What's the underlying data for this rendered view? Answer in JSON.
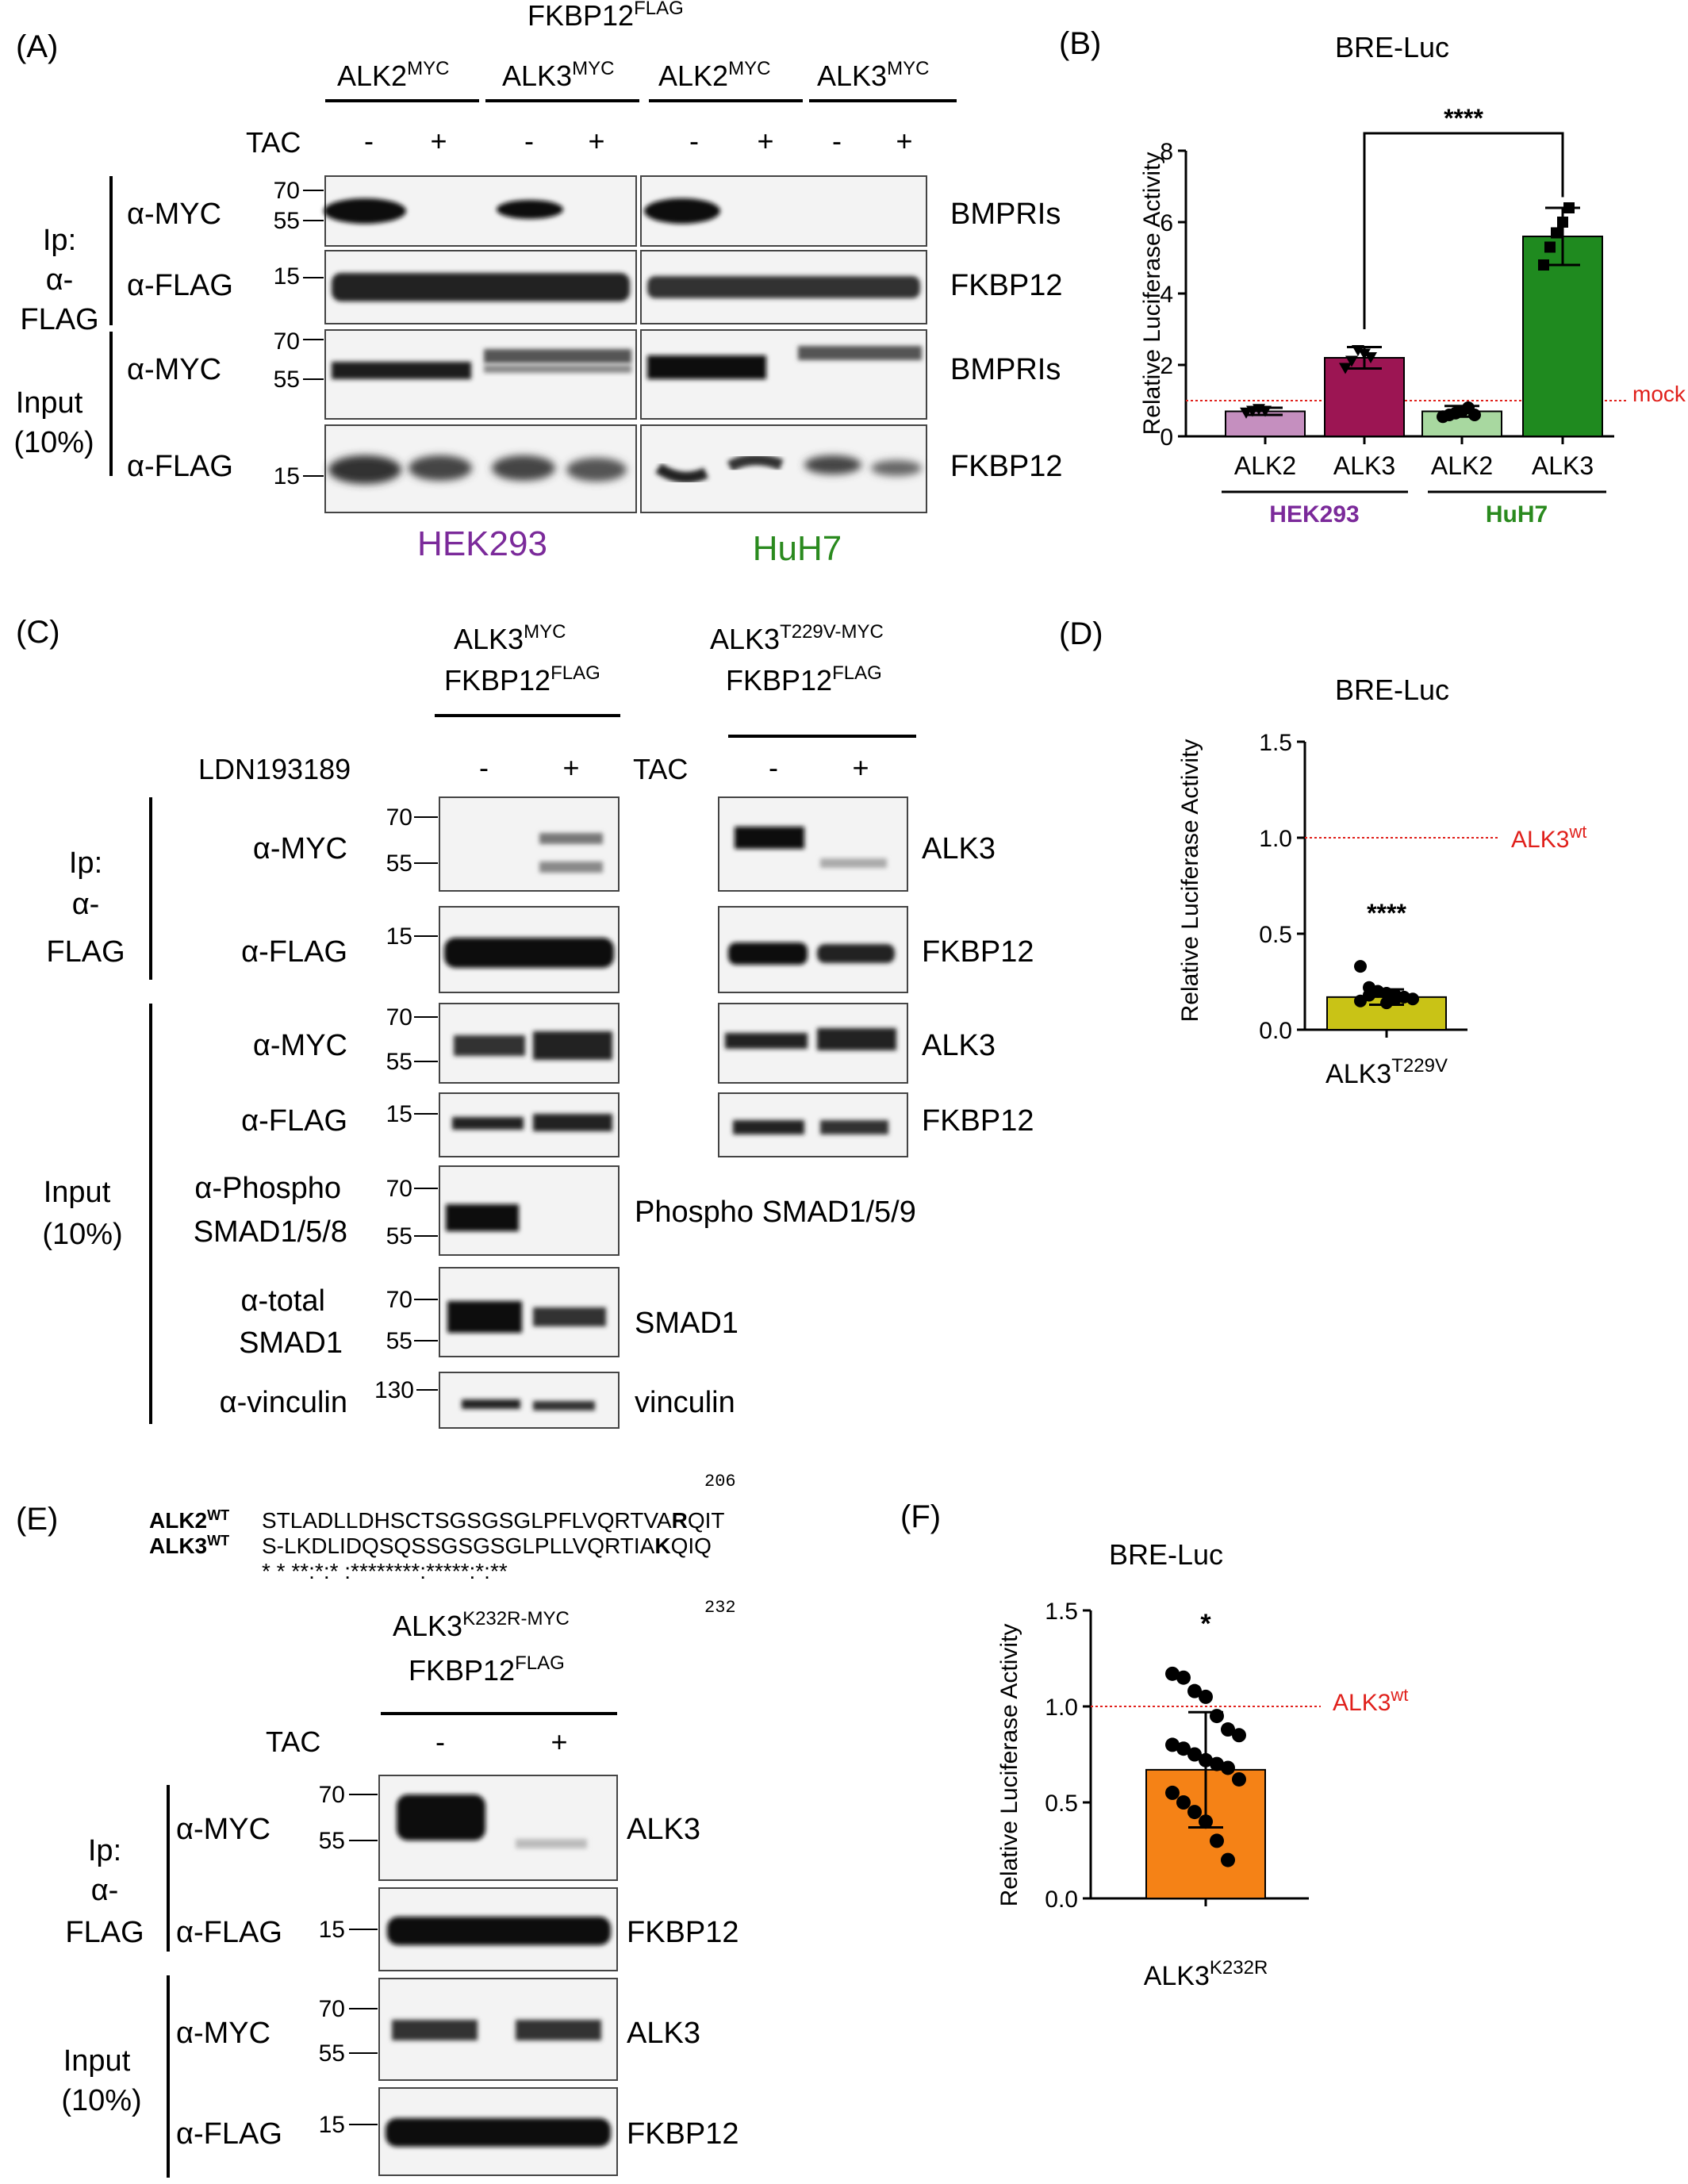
{
  "panelA": {
    "label": "(A)",
    "top_construct": "FKBP12",
    "top_construct_sup": "FLAG",
    "groups": [
      "ALK2",
      "ALK3",
      "ALK2",
      "ALK3"
    ],
    "group_sup": "MYC",
    "tac_label": "TAC",
    "lane_signs": [
      "-",
      "+",
      "-",
      "+",
      "-",
      "+",
      "-",
      "+"
    ],
    "ip_label": [
      "Ip:",
      "α-",
      "FLAG"
    ],
    "input_label": [
      "Input",
      "(10%)"
    ],
    "rows": [
      {
        "antibody": "α-MYC",
        "markers": [
          "70",
          "55"
        ],
        "target": "BMPRIs"
      },
      {
        "antibody": "α-FLAG",
        "markers": [
          "15"
        ],
        "target": "FKBP12"
      },
      {
        "antibody": "α-MYC",
        "markers": [
          "70",
          "55"
        ],
        "target": "BMPRIs"
      },
      {
        "antibody": "α-FLAG",
        "markers": [
          "15"
        ],
        "target": "FKBP12"
      }
    ],
    "cell_lines": [
      "HEK293",
      "HuH7"
    ],
    "cell_line_colors": [
      "#7b2a9a",
      "#2a8a1e"
    ]
  },
  "panelB": {
    "label": "(B)",
    "chart_data": {
      "type": "bar",
      "title": "BRE-Luc",
      "ylabel": "Relative Luciferase Activity",
      "ylim": [
        0,
        8
      ],
      "yticks": [
        "0",
        "2",
        "4",
        "6",
        "8"
      ],
      "categories": [
        "ALK2",
        "ALK3",
        "ALK2",
        "ALK3"
      ],
      "groups": [
        {
          "name": "HEK293",
          "color": "#7b2a9a"
        },
        {
          "name": "HuH7",
          "color": "#2a8a1e"
        }
      ],
      "values": [
        0.7,
        2.2,
        0.7,
        5.6
      ],
      "sd": [
        0.1,
        0.3,
        0.15,
        0.8
      ],
      "colors": [
        "#c58fbf",
        "#9c1553",
        "#a8d8a0",
        "#1f8a1f"
      ],
      "points": [
        [
          0.65,
          0.7,
          0.75,
          0.7
        ],
        [
          1.9,
          2.1,
          2.4,
          2.3,
          2.2
        ],
        [
          0.55,
          0.6,
          0.65,
          0.7,
          0.8,
          0.6
        ],
        [
          4.8,
          5.3,
          5.7,
          6.0,
          6.4
        ]
      ],
      "reference_line": {
        "value": 1.0,
        "label": "mock",
        "color": "#e0201b"
      },
      "significance": "****"
    }
  },
  "panelC": {
    "label": "(C)",
    "left_construct": [
      "ALK3",
      "FKBP12"
    ],
    "left_construct_sup": [
      "MYC",
      "FLAG"
    ],
    "right_construct": [
      "ALK3",
      "FKBP12"
    ],
    "right_construct_sup": [
      "T229V-MYC",
      "FLAG"
    ],
    "treat_left": "LDN193189",
    "treat_right": "TAC",
    "signs": [
      "-",
      "+",
      "-",
      "+"
    ],
    "ip_label": [
      "Ip:",
      "α-",
      "FLAG"
    ],
    "input_label": [
      "Input",
      "(10%)"
    ],
    "rows": [
      {
        "antibody": [
          "α-MYC"
        ],
        "markers": [
          "70",
          "55"
        ],
        "target": "ALK3"
      },
      {
        "antibody": [
          "α-FLAG"
        ],
        "markers": [
          "15"
        ],
        "target": "FKBP12"
      },
      {
        "antibody": [
          "α-MYC"
        ],
        "markers": [
          "70",
          "55"
        ],
        "target": "ALK3"
      },
      {
        "antibody": [
          "α-FLAG"
        ],
        "markers": [
          "15"
        ],
        "target": "FKBP12"
      },
      {
        "antibody": [
          "α-Phospho",
          "SMAD1/5/8"
        ],
        "markers": [
          "70",
          "55"
        ],
        "target": "Phospho SMAD1/5/9"
      },
      {
        "antibody": [
          "α-total",
          "SMAD1"
        ],
        "markers": [
          "70",
          "55"
        ],
        "target": "SMAD1"
      },
      {
        "antibody": [
          "α-vinculin"
        ],
        "markers": [
          "130"
        ],
        "target": "vinculin"
      }
    ]
  },
  "panelD": {
    "label": "(D)",
    "chart_data": {
      "type": "bar",
      "title": "BRE-Luc",
      "ylabel": "Relative Luciferase Activity",
      "ylim": [
        0,
        1.5
      ],
      "yticks": [
        "0.0",
        "0.5",
        "1.0",
        "1.5"
      ],
      "categories": [
        "ALK3"
      ],
      "category_sup": "T229V",
      "values": [
        0.17
      ],
      "sd": [
        0.04
      ],
      "colors": [
        "#c9c316"
      ],
      "points": [
        0.33,
        0.22,
        0.2,
        0.19,
        0.18,
        0.17,
        0.16,
        0.15,
        0.18,
        0.2,
        0.14,
        0.16
      ],
      "reference_line": {
        "value": 1.0,
        "label": "ALK3",
        "label_sup": "wt",
        "color": "#e0201b"
      },
      "significance": "****"
    }
  },
  "panelE": {
    "label": "(E)",
    "alignment": {
      "rows": [
        {
          "name": "ALK2",
          "sup": "WT",
          "seq_pre": "STLADLLDHSCTSGSGSGLPFLVQRTVA",
          "seq_bold": "R",
          "seq_post": "QIT"
        },
        {
          "name": "ALK3",
          "sup": "WT",
          "seq_pre": "S-LKDLIDQSQSSGSGSGLPLLVQRTIA",
          "seq_bold": "K",
          "seq_post": "QIQ"
        }
      ],
      "consensus": "* * **:*:* :********:*****:*:**",
      "top_number": "206",
      "bottom_number": "232"
    },
    "construct": [
      "ALK3",
      "FKBP12"
    ],
    "construct_sup": [
      "K232R-MYC",
      "FLAG"
    ],
    "treat": "TAC",
    "signs": [
      "-",
      "+"
    ],
    "ip_label": [
      "Ip:",
      "α-",
      "FLAG"
    ],
    "input_label": [
      "Input",
      "(10%)"
    ],
    "rows": [
      {
        "antibody": "α-MYC",
        "markers": [
          "70",
          "55"
        ],
        "target": "ALK3"
      },
      {
        "antibody": "α-FLAG",
        "markers": [
          "15"
        ],
        "target": "FKBP12"
      },
      {
        "antibody": "α-MYC",
        "markers": [
          "70",
          "55"
        ],
        "target": "ALK3"
      },
      {
        "antibody": "α-FLAG",
        "markers": [
          "15"
        ],
        "target": "FKBP12"
      }
    ]
  },
  "panelF": {
    "label": "(F)",
    "chart_data": {
      "type": "bar",
      "title": "BRE-Luc",
      "ylabel": "Relative Luciferase Activity",
      "ylim": [
        0,
        1.5
      ],
      "yticks": [
        "0.0",
        "0.5",
        "1.0",
        "1.5"
      ],
      "categories": [
        "ALK3"
      ],
      "category_sup": "K232R",
      "values": [
        0.67
      ],
      "sd": [
        0.3
      ],
      "colors": [
        "#f58216"
      ],
      "points": [
        1.17,
        1.15,
        1.08,
        1.05,
        0.95,
        0.88,
        0.85,
        0.8,
        0.78,
        0.75,
        0.72,
        0.7,
        0.68,
        0.62,
        0.55,
        0.5,
        0.45,
        0.4,
        0.3,
        0.2
      ],
      "reference_line": {
        "value": 1.0,
        "label": "ALK3",
        "label_sup": "wt",
        "color": "#e0201b"
      },
      "significance": "*"
    }
  }
}
